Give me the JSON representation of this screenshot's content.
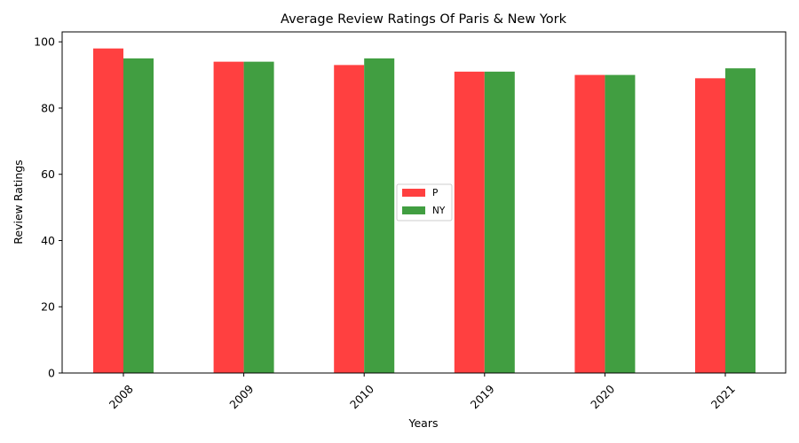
{
  "chart_data": {
    "type": "bar",
    "title": "Average Review Ratings Of Paris & New York",
    "xlabel": "Years",
    "ylabel": "Review Ratings",
    "categories": [
      "2008",
      "2009",
      "2010",
      "2019",
      "2020",
      "2021"
    ],
    "series": [
      {
        "name": "P",
        "values": [
          98,
          94,
          93,
          91,
          90,
          89
        ],
        "color": "#ff4040"
      },
      {
        "name": "NY",
        "values": [
          95,
          94,
          95,
          91,
          90,
          92
        ],
        "color": "#419e41"
      }
    ],
    "ylim": [
      0,
      103
    ],
    "yticks": [
      0,
      20,
      40,
      60,
      80,
      100
    ],
    "grid": false,
    "legend_position": "center-right",
    "xtick_rotation": 45
  }
}
